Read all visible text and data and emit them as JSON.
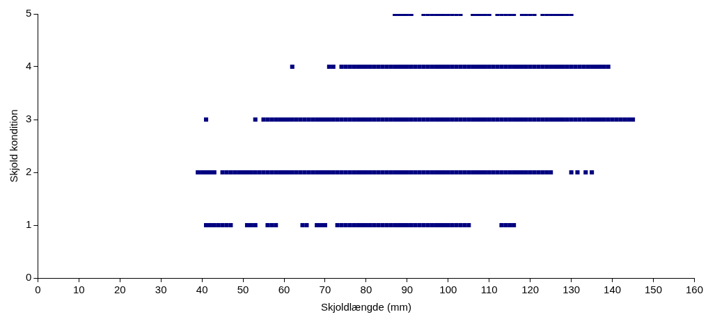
{
  "chart_data": {
    "type": "scatter",
    "xlabel": "Skjoldlængde (mm)",
    "ylabel": "Skjold kondition",
    "xlim": [
      0,
      160
    ],
    "xticks": [
      0,
      10,
      20,
      30,
      40,
      50,
      60,
      70,
      80,
      90,
      100,
      110,
      120,
      130,
      140,
      150,
      160
    ],
    "ylim": [
      0,
      5
    ],
    "yticks": [
      0,
      1,
      2,
      3,
      4,
      5
    ],
    "grid": false,
    "legend": false,
    "marker": "square",
    "series": [
      {
        "color": "#000080",
        "x": [
          41,
          42,
          43,
          44,
          45,
          46,
          47,
          51,
          52,
          53,
          56,
          57,
          58,
          64.5,
          65.5,
          68,
          69,
          70,
          73,
          74,
          75,
          76,
          77,
          78,
          79,
          80,
          81,
          82,
          83,
          84,
          85,
          86,
          87,
          88,
          89,
          90,
          91,
          92,
          93,
          94,
          95,
          96,
          97,
          98,
          99,
          100,
          101,
          102,
          103,
          104,
          105,
          113,
          114,
          115,
          116
        ],
        "values": [
          1,
          1,
          1,
          1,
          1,
          1,
          1,
          1,
          1,
          1,
          1,
          1,
          1,
          1,
          1,
          1,
          1,
          1,
          1,
          1,
          1,
          1,
          1,
          1,
          1,
          1,
          1,
          1,
          1,
          1,
          1,
          1,
          1,
          1,
          1,
          1,
          1,
          1,
          1,
          1,
          1,
          1,
          1,
          1,
          1,
          1,
          1,
          1,
          1,
          1,
          1,
          1,
          1,
          1,
          1
        ]
      },
      {
        "color": "#000080",
        "x": [
          39,
          40,
          41,
          42,
          43,
          45,
          46,
          47,
          48,
          49,
          50,
          51,
          52,
          53,
          54,
          55,
          56,
          57,
          58,
          59,
          60,
          61,
          62,
          63,
          64,
          65,
          66,
          67,
          68,
          69,
          70,
          71,
          72,
          73,
          74,
          75,
          76,
          77,
          78,
          79,
          80,
          81,
          82,
          83,
          84,
          85,
          86,
          87,
          88,
          89,
          90,
          91,
          92,
          93,
          94,
          95,
          96,
          97,
          98,
          99,
          100,
          101,
          102,
          103,
          104,
          105,
          106,
          107,
          108,
          109,
          110,
          111,
          112,
          113,
          114,
          115,
          116,
          117,
          118,
          119,
          120,
          121,
          122,
          123,
          124,
          125,
          130,
          131.5,
          133.5,
          135
        ],
        "values": [
          2,
          2,
          2,
          2,
          2,
          2,
          2,
          2,
          2,
          2,
          2,
          2,
          2,
          2,
          2,
          2,
          2,
          2,
          2,
          2,
          2,
          2,
          2,
          2,
          2,
          2,
          2,
          2,
          2,
          2,
          2,
          2,
          2,
          2,
          2,
          2,
          2,
          2,
          2,
          2,
          2,
          2,
          2,
          2,
          2,
          2,
          2,
          2,
          2,
          2,
          2,
          2,
          2,
          2,
          2,
          2,
          2,
          2,
          2,
          2,
          2,
          2,
          2,
          2,
          2,
          2,
          2,
          2,
          2,
          2,
          2,
          2,
          2,
          2,
          2,
          2,
          2,
          2,
          2,
          2,
          2,
          2,
          2,
          2,
          2,
          2,
          2,
          2,
          2,
          2
        ]
      },
      {
        "color": "#000080",
        "x": [
          41,
          53,
          55,
          56,
          57,
          58,
          59,
          60,
          61,
          62,
          63,
          64,
          65,
          66,
          67,
          68,
          69,
          70,
          71,
          72,
          73,
          74,
          75,
          76,
          77,
          78,
          79,
          80,
          81,
          82,
          83,
          84,
          85,
          86,
          87,
          88,
          89,
          90,
          91,
          92,
          93,
          94,
          95,
          96,
          97,
          98,
          99,
          100,
          101,
          102,
          103,
          104,
          105,
          106,
          107,
          108,
          109,
          110,
          111,
          112,
          113,
          114,
          115,
          116,
          117,
          118,
          119,
          120,
          121,
          122,
          123,
          124,
          125,
          126,
          127,
          128,
          129,
          130,
          131,
          132,
          133,
          134,
          135,
          136,
          137,
          138,
          139,
          140,
          141,
          142,
          143,
          144,
          145
        ],
        "values": [
          3,
          3,
          3,
          3,
          3,
          3,
          3,
          3,
          3,
          3,
          3,
          3,
          3,
          3,
          3,
          3,
          3,
          3,
          3,
          3,
          3,
          3,
          3,
          3,
          3,
          3,
          3,
          3,
          3,
          3,
          3,
          3,
          3,
          3,
          3,
          3,
          3,
          3,
          3,
          3,
          3,
          3,
          3,
          3,
          3,
          3,
          3,
          3,
          3,
          3,
          3,
          3,
          3,
          3,
          3,
          3,
          3,
          3,
          3,
          3,
          3,
          3,
          3,
          3,
          3,
          3,
          3,
          3,
          3,
          3,
          3,
          3,
          3,
          3,
          3,
          3,
          3,
          3,
          3,
          3,
          3,
          3,
          3,
          3,
          3,
          3,
          3,
          3,
          3,
          3,
          3,
          3,
          3
        ]
      },
      {
        "color": "#000080",
        "x": [
          62,
          71,
          72,
          74,
          75,
          76,
          77,
          78,
          79,
          80,
          81,
          82,
          83,
          84,
          85,
          86,
          87,
          88,
          89,
          90,
          91,
          92,
          93,
          94,
          95,
          96,
          97,
          98,
          99,
          100,
          101,
          102,
          103,
          104,
          105,
          106,
          107,
          108,
          109,
          110,
          111,
          112,
          113,
          114,
          115,
          116,
          117,
          118,
          119,
          120,
          121,
          122,
          123,
          124,
          125,
          126,
          127,
          128,
          129,
          130,
          131,
          132,
          133,
          134,
          135,
          136,
          137,
          138,
          139
        ],
        "values": [
          4,
          4,
          4,
          4,
          4,
          4,
          4,
          4,
          4,
          4,
          4,
          4,
          4,
          4,
          4,
          4,
          4,
          4,
          4,
          4,
          4,
          4,
          4,
          4,
          4,
          4,
          4,
          4,
          4,
          4,
          4,
          4,
          4,
          4,
          4,
          4,
          4,
          4,
          4,
          4,
          4,
          4,
          4,
          4,
          4,
          4,
          4,
          4,
          4,
          4,
          4,
          4,
          4,
          4,
          4,
          4,
          4,
          4,
          4,
          4,
          4,
          4,
          4,
          4,
          4,
          4,
          4,
          4,
          4
        ]
      },
      {
        "color": "#000080",
        "x": [
          87,
          88,
          89,
          90,
          91,
          94,
          95,
          96,
          97,
          98,
          99,
          100,
          101,
          102,
          103,
          106,
          107,
          108,
          109,
          110,
          112,
          113,
          114,
          115,
          116,
          118,
          119,
          120,
          121,
          123,
          124,
          125,
          126,
          127,
          128,
          129,
          130
        ],
        "values": [
          5,
          5,
          5,
          5,
          5,
          5,
          5,
          5,
          5,
          5,
          5,
          5,
          5,
          5,
          5,
          5,
          5,
          5,
          5,
          5,
          5,
          5,
          5,
          5,
          5,
          5,
          5,
          5,
          5,
          5,
          5,
          5,
          5,
          5,
          5,
          5,
          5
        ]
      }
    ]
  }
}
